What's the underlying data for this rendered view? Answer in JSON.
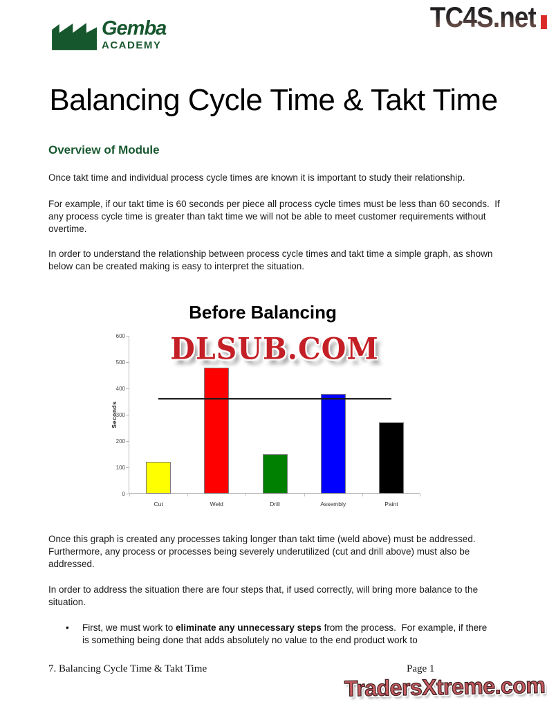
{
  "logo": {
    "line1": "Gemba",
    "line2": "ACADEMY",
    "color": "#17572e"
  },
  "watermarks": {
    "top_right": "TC4S.net",
    "chart_overlay": "DLSUB.COM",
    "bottom": "TradersXtreme.com"
  },
  "page_title": "Balancing Cycle Time & Takt Time",
  "section_heading": "Overview of Module",
  "paragraphs": [
    "Once takt time and individual process cycle times are known it is important to study their relationship.",
    "For example, if our takt time is 60 seconds per piece all process cycle times must be less than 60 seconds.  If any process cycle time is greater than takt time we will not be able to meet customer requirements without overtime.",
    "In order to understand the relationship between process cycle times and takt time a simple graph, as shown below can be created making is easy to interpret the situation.",
    "Once this graph is created any processes taking longer than takt time (weld above) must be addressed. Furthermore, any process or processes being severely underutilized (cut and drill above) must also be addressed.",
    "In order to address the situation there are four steps that, if used correctly, will bring more balance to the situation."
  ],
  "chart_data": {
    "type": "bar",
    "title": "Before Balancing",
    "categories": [
      "Cut",
      "Weld",
      "Drill",
      "Assembly",
      "Paint"
    ],
    "values": [
      120,
      480,
      150,
      380,
      270
    ],
    "bar_colors": [
      "#ffff00",
      "#ff0000",
      "#008000",
      "#0000ff",
      "#000000"
    ],
    "ylabel": "Seconds",
    "xlabel": "",
    "ylim": [
      0,
      600
    ],
    "ytick_interval": 100,
    "takt_line_value": 360,
    "grid": false,
    "legend": false
  },
  "bullet": {
    "pre": "First, we must work to ",
    "bold": "eliminate any unnecessary steps",
    "post": " from the process.  For example, if there is something being done that adds absolutely no value to the end product work to"
  },
  "footer": {
    "left": "7. Balancing Cycle Time & Takt Time",
    "right": "Page 1"
  }
}
